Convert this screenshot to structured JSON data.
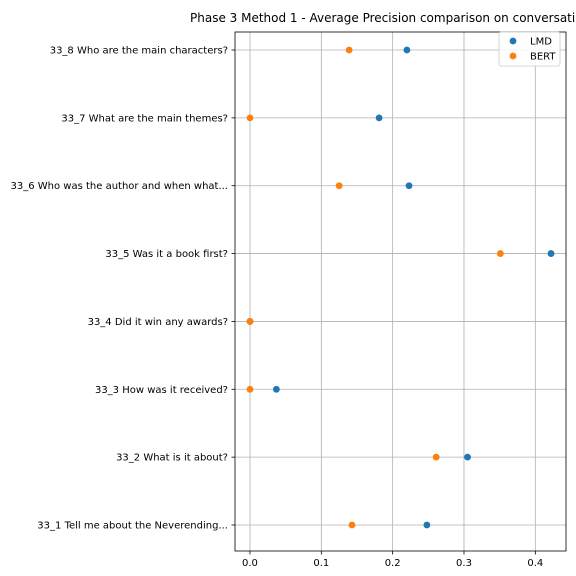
{
  "chart_data": {
    "type": "scatter",
    "title": "Phase 3 Method 1 - Average Precision comparison on conversati",
    "xlabel": "",
    "ylabel": "",
    "xlim": [
      -0.021,
      0.443
    ],
    "xticks": [
      0.0,
      0.1,
      0.2,
      0.3,
      0.4
    ],
    "xtick_labels": [
      "0.0",
      "0.1",
      "0.2",
      "0.3",
      "0.4"
    ],
    "categories": [
      "33_1 Tell me about the Neverending...",
      "33_2 What is it about?",
      "33_3 How was it received?",
      "33_4 Did it win any awards?",
      "33_5 Was it a book first?",
      "33_6 Who was the author and when what...",
      "33_7 What are the main themes?",
      "33_8 Who are the main characters?"
    ],
    "series": [
      {
        "name": "LMD",
        "color": "#1f77b4",
        "values": [
          0.248,
          0.305,
          0.037,
          0.0,
          0.422,
          0.223,
          0.181,
          0.22
        ]
      },
      {
        "name": "BERT",
        "color": "#ff7f0e",
        "values": [
          0.143,
          0.261,
          0.0,
          0.0,
          0.351,
          0.125,
          0.0,
          0.139
        ]
      }
    ],
    "grid": true,
    "legend": "top-right"
  }
}
